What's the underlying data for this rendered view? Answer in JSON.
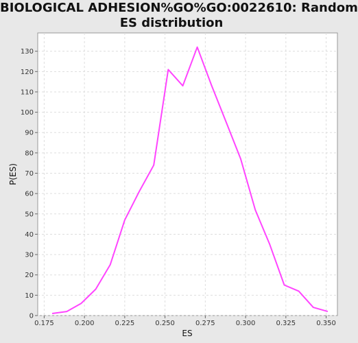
{
  "chart_data": {
    "type": "line",
    "title_lines": [
      "BIOLOGICAL ADHESION%GO%GO:0022610: Random",
      "ES distribution"
    ],
    "xlabel": "ES",
    "ylabel": "P(ES)",
    "xlim": [
      0.171,
      0.357
    ],
    "ylim": [
      0,
      139
    ],
    "xticks": [
      0.175,
      0.2,
      0.225,
      0.25,
      0.275,
      0.3,
      0.325,
      0.35
    ],
    "xtick_labels": [
      "0.175",
      "0.200",
      "0.225",
      "0.250",
      "0.275",
      "0.300",
      "0.325",
      "0.350"
    ],
    "yticks": [
      0,
      10,
      20,
      30,
      40,
      50,
      60,
      70,
      80,
      90,
      100,
      110,
      120,
      130
    ],
    "ytick_labels": [
      "0",
      "10",
      "20",
      "30",
      "40",
      "50",
      "60",
      "70",
      "80",
      "90",
      "100",
      "110",
      "120",
      "130"
    ],
    "grid": true,
    "legend": "none",
    "series": [
      {
        "color": "#ff44ff",
        "x": [
          0.18,
          0.189,
          0.198,
          0.207,
          0.216,
          0.225,
          0.234,
          0.243,
          0.252,
          0.261,
          0.27,
          0.279,
          0.288,
          0.297,
          0.306,
          0.315,
          0.324,
          0.333,
          0.342,
          0.351
        ],
        "y": [
          1,
          2,
          6,
          13,
          25,
          47,
          61,
          74,
          121,
          113,
          132,
          113,
          95,
          77,
          52,
          35,
          15,
          12,
          4,
          2
        ]
      }
    ]
  }
}
